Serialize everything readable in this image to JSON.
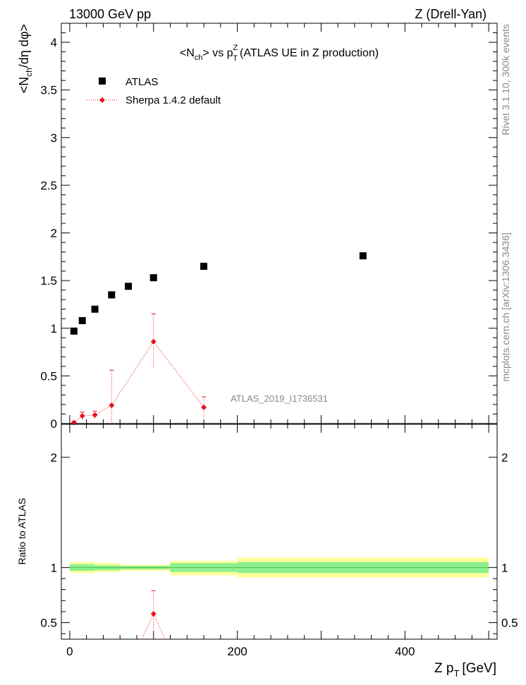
{
  "header": {
    "left": "13000 GeV pp",
    "right": "Z (Drell-Yan)"
  },
  "side_labels": {
    "rivet": "Rivet 3.1.10,  300k events",
    "mcplots": "mcplots.cern.ch [arXiv:1306.3436]"
  },
  "watermark": "ATLAS_2019_I1736531",
  "colors": {
    "data": "#000000",
    "mc": "#e8121e",
    "band_inner": "#8ff08f",
    "band_outer": "#ffff99"
  },
  "chart_data": [
    {
      "type": "scatter",
      "title": "<N_ch> vs p_T^Z (ATLAS UE in Z production)",
      "xlabel": "Z p_T [GeV]",
      "ylabel": "<N_ch/dη dφ>",
      "xlim": [
        -10,
        510
      ],
      "ylim": [
        0,
        4.2
      ],
      "yticks": [
        "0",
        "0.5",
        "1",
        "1.5",
        "2",
        "2.5",
        "3",
        "3.5",
        "4"
      ],
      "legend_position": "top-left",
      "series": [
        {
          "name": "ATLAS",
          "marker": "square",
          "x": [
            5,
            15,
            30,
            50,
            70,
            100,
            160,
            350
          ],
          "y": [
            0.97,
            1.08,
            1.2,
            1.35,
            1.44,
            1.53,
            1.65,
            1.76
          ]
        },
        {
          "name": "Sherpa 1.4.2 default",
          "marker": "diamond",
          "line": "dotted",
          "x": [
            5,
            15,
            30,
            50,
            100,
            160
          ],
          "y": [
            0.01,
            0.08,
            0.09,
            0.19,
            0.86,
            0.17
          ],
          "err": [
            0.01,
            0.04,
            0.04,
            0.37,
            0.29,
            0.11
          ]
        }
      ]
    },
    {
      "type": "scatter",
      "ylabel": "Ratio to ATLAS",
      "xlabel": "Z p_T [GeV]",
      "xlim": [
        -10,
        510
      ],
      "xticks": [
        "0",
        "200",
        "400"
      ],
      "ylim": [
        0.35,
        2.3
      ],
      "yticks": [
        "0.5",
        "1",
        "2"
      ],
      "bands": [
        {
          "x0": 0,
          "x1": 30,
          "inner": [
            0.97,
            1.03
          ],
          "outer": [
            0.95,
            1.05
          ]
        },
        {
          "x0": 30,
          "x1": 60,
          "inner": [
            0.975,
            1.02
          ],
          "outer": [
            0.96,
            1.04
          ]
        },
        {
          "x0": 60,
          "x1": 120,
          "inner": [
            0.985,
            1.015
          ],
          "outer": [
            0.97,
            1.025
          ]
        },
        {
          "x0": 120,
          "x1": 200,
          "inner": [
            0.96,
            1.04
          ],
          "outer": [
            0.93,
            1.06
          ]
        },
        {
          "x0": 200,
          "x1": 500,
          "inner": [
            0.95,
            1.05
          ],
          "outer": [
            0.91,
            1.09
          ]
        }
      ],
      "series": [
        {
          "name": "Sherpa 1.4.2 default",
          "x": [
            100
          ],
          "y": [
            0.58
          ],
          "err": [
            0.21
          ]
        }
      ]
    }
  ]
}
